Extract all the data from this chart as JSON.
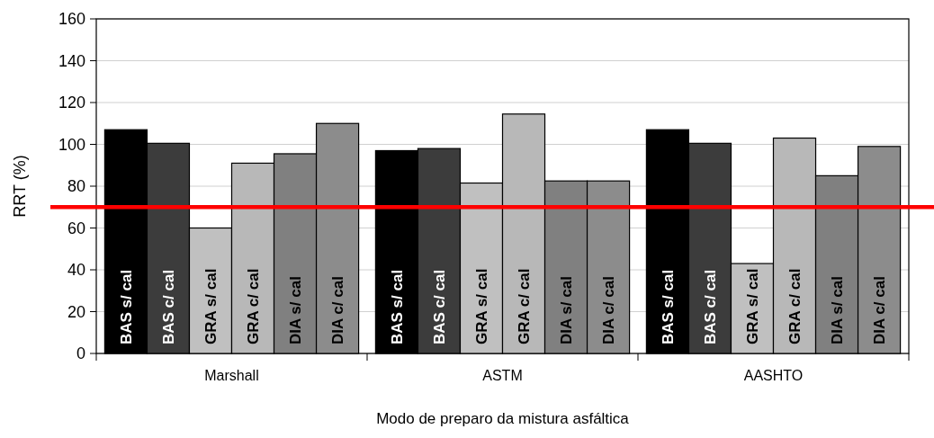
{
  "chart_data": {
    "type": "bar",
    "xlabel": "Modo de preparo da mistura asfáltica",
    "ylabel": "RRT (%)",
    "categories": [
      "Marshall",
      "ASTM",
      "AASHTO"
    ],
    "series": [
      {
        "name": "BAS s/ cal",
        "color": "#000000",
        "values": [
          107,
          97,
          107
        ]
      },
      {
        "name": "BAS c/ cal",
        "color": "#3c3c3c",
        "values": [
          100.5,
          98,
          100.5
        ]
      },
      {
        "name": "GRA s/ cal",
        "color": "#c0c0c0",
        "values": [
          60,
          81.5,
          43
        ]
      },
      {
        "name": "GRA c/ cal",
        "color": "#b8b8b8",
        "values": [
          91,
          114.5,
          103
        ]
      },
      {
        "name": "DIA s/ cal",
        "color": "#808080",
        "values": [
          95.5,
          82.5,
          85
        ]
      },
      {
        "name": "DIA c/ cal",
        "color": "#8c8c8c",
        "values": [
          110,
          82.5,
          99
        ]
      }
    ],
    "ylim": [
      0,
      160
    ],
    "yticks": [
      0,
      20,
      40,
      60,
      80,
      100,
      120,
      140,
      160
    ],
    "grid": "y",
    "ref_lines": [
      {
        "axis": "y",
        "value": 70,
        "color": "#ff0000"
      }
    ]
  }
}
